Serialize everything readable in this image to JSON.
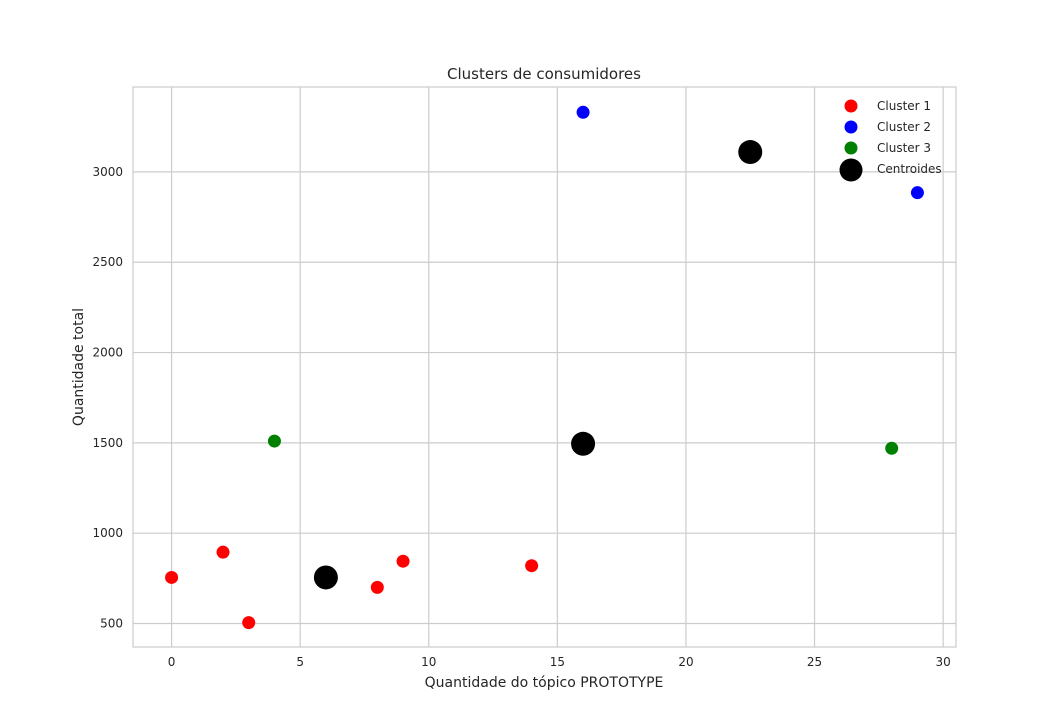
{
  "chart_data": {
    "type": "scatter",
    "title": "Clusters de consumidores",
    "xlabel": "Quantidade do tópico PROTOTYPE",
    "ylabel": "Quantidade total",
    "xlim": [
      -1.5,
      30.5
    ],
    "ylim": [
      370,
      3470
    ],
    "x_ticks": [
      0,
      5,
      10,
      15,
      20,
      25,
      30
    ],
    "y_ticks": [
      500,
      1000,
      1500,
      2000,
      2500,
      3000
    ],
    "grid": true,
    "legend_position": "top-right",
    "series": [
      {
        "name": "Cluster 1",
        "color": "#ff0000",
        "marker": "circle-small",
        "points": [
          {
            "x": 0,
            "y": 755
          },
          {
            "x": 2,
            "y": 895
          },
          {
            "x": 3,
            "y": 505
          },
          {
            "x": 8,
            "y": 700
          },
          {
            "x": 9,
            "y": 845
          },
          {
            "x": 14,
            "y": 820
          }
        ]
      },
      {
        "name": "Cluster 2",
        "color": "#0000ff",
        "marker": "circle-small",
        "points": [
          {
            "x": 16,
            "y": 3330
          },
          {
            "x": 29,
            "y": 2885
          }
        ]
      },
      {
        "name": "Cluster 3",
        "color": "#008000",
        "marker": "circle-small",
        "points": [
          {
            "x": 4,
            "y": 1510
          },
          {
            "x": 28,
            "y": 1470
          }
        ]
      },
      {
        "name": "Centroides",
        "color": "#000000",
        "marker": "circle-large",
        "points": [
          {
            "x": 6,
            "y": 755
          },
          {
            "x": 16,
            "y": 1495
          },
          {
            "x": 22.5,
            "y": 3110
          }
        ]
      }
    ]
  }
}
